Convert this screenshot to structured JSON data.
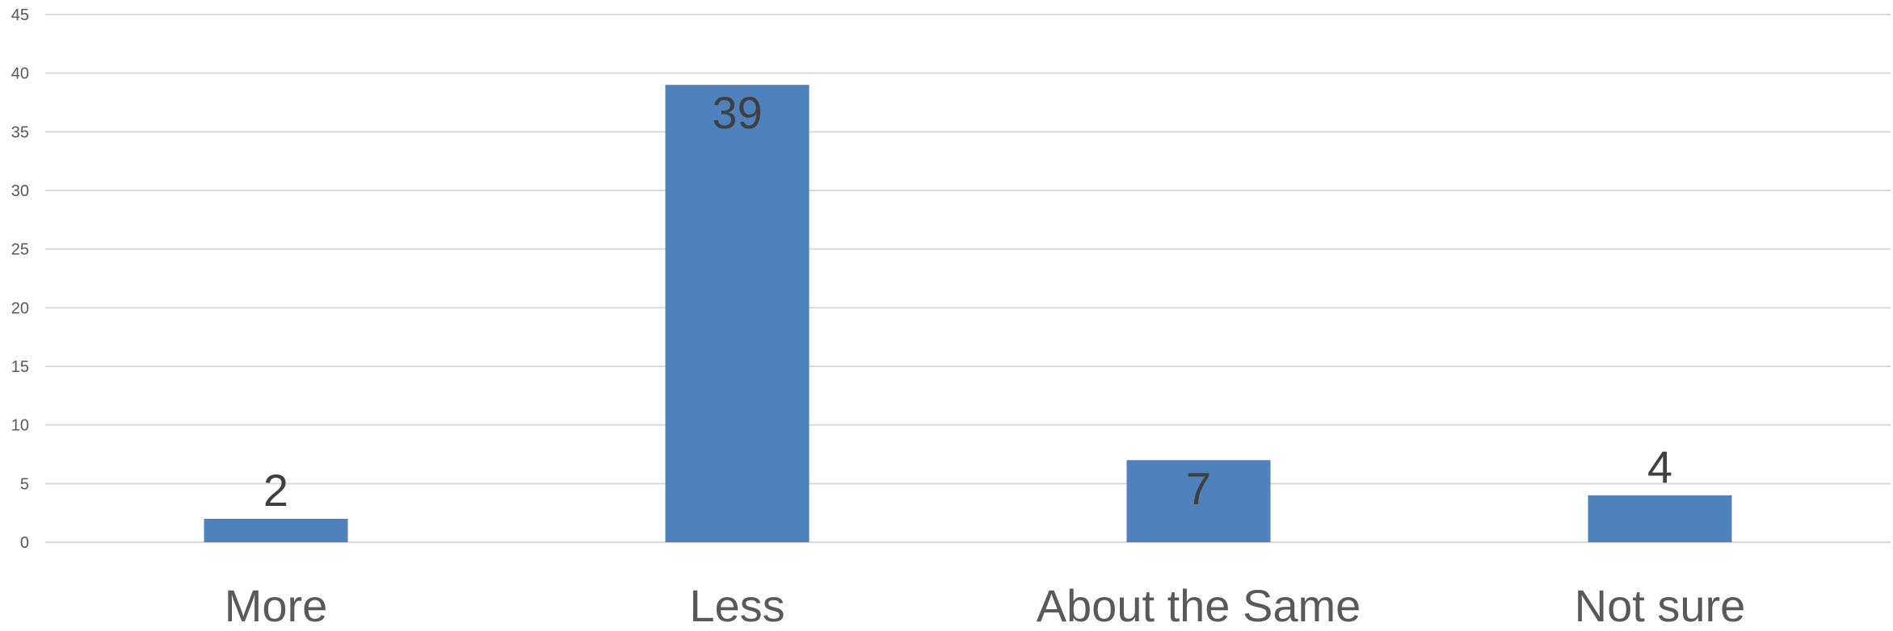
{
  "chart_data": {
    "type": "bar",
    "categories": [
      "More",
      "Less",
      "About the Same",
      "Not sure"
    ],
    "values": [
      2,
      39,
      7,
      4
    ],
    "data_labels": [
      "2",
      "39",
      "7",
      "4"
    ],
    "data_label_positions": [
      "outside",
      "inside",
      "inside",
      "outside"
    ],
    "title": "",
    "xlabel": "",
    "ylabel": "",
    "ylim": [
      0,
      45
    ],
    "yticks": [
      0,
      5,
      10,
      15,
      20,
      25,
      30,
      35,
      40,
      45
    ],
    "grid": "horizontal",
    "legend": "none",
    "colors": {
      "bar": "#4f81bd",
      "grid": "#d9d9d9",
      "axis_text": "#595959",
      "data_label": "#404040"
    }
  }
}
